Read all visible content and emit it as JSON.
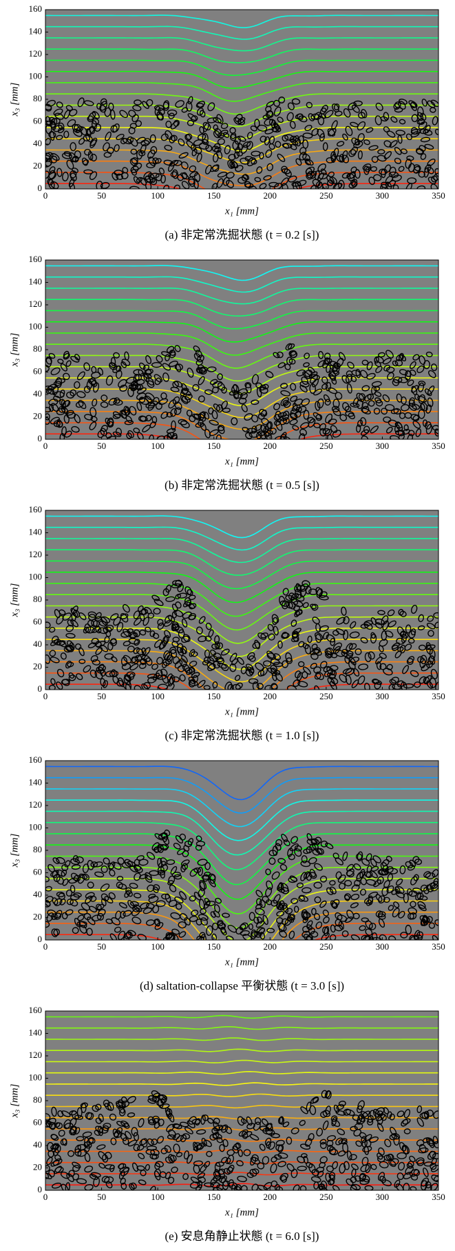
{
  "chart_data": [
    {
      "type": "contour",
      "x_label": "x₁ [mm]",
      "y_label": "x₃ [mm]",
      "caption": "(a) 非定常洗掘状態 (t = 0.2 [s])",
      "xlim": [
        0,
        350
      ],
      "ylim": [
        0,
        160
      ],
      "xticks": [
        0,
        50,
        100,
        150,
        200,
        250,
        300,
        350
      ],
      "yticks": [
        0,
        20,
        40,
        60,
        80,
        100,
        120,
        140,
        160
      ]
    },
    {
      "type": "contour",
      "x_label": "x₁ [mm]",
      "y_label": "x₃ [mm]",
      "caption": "(b) 非定常洗掘状態 (t = 0.5 [s])",
      "xlim": [
        0,
        350
      ],
      "ylim": [
        0,
        160
      ],
      "xticks": [
        0,
        50,
        100,
        150,
        200,
        250,
        300,
        350
      ],
      "yticks": [
        0,
        20,
        40,
        60,
        80,
        100,
        120,
        140,
        160
      ]
    },
    {
      "type": "contour",
      "x_label": "x₁ [mm]",
      "y_label": "x₃ [mm]",
      "caption": "(c) 非定常洗掘状態 (t = 1.0 [s])",
      "xlim": [
        0,
        350
      ],
      "ylim": [
        0,
        160
      ],
      "xticks": [
        0,
        50,
        100,
        150,
        200,
        250,
        300,
        350
      ],
      "yticks": [
        0,
        20,
        40,
        60,
        80,
        100,
        120,
        140,
        160
      ]
    },
    {
      "type": "contour",
      "x_label": "x₁ [mm]",
      "y_label": "x₃ [mm]",
      "caption": "(d) saltation-collapse 平衡状態 (t = 3.0 [s])",
      "xlim": [
        0,
        350
      ],
      "ylim": [
        0,
        160
      ],
      "xticks": [
        0,
        50,
        100,
        150,
        200,
        250,
        300,
        350
      ],
      "yticks": [
        0,
        20,
        40,
        60,
        80,
        100,
        120,
        140,
        160
      ]
    },
    {
      "type": "contour",
      "x_label": "x₁ [mm]",
      "y_label": "x₃ [mm]",
      "caption": "(e) 安息角静止状態 (t = 6.0 [s])",
      "xlim": [
        0,
        350
      ],
      "ylim": [
        0,
        160
      ],
      "xticks": [
        0,
        50,
        100,
        150,
        200,
        250,
        300,
        350
      ],
      "yticks": [
        0,
        20,
        40,
        60,
        80,
        100,
        120,
        140,
        160
      ]
    }
  ]
}
